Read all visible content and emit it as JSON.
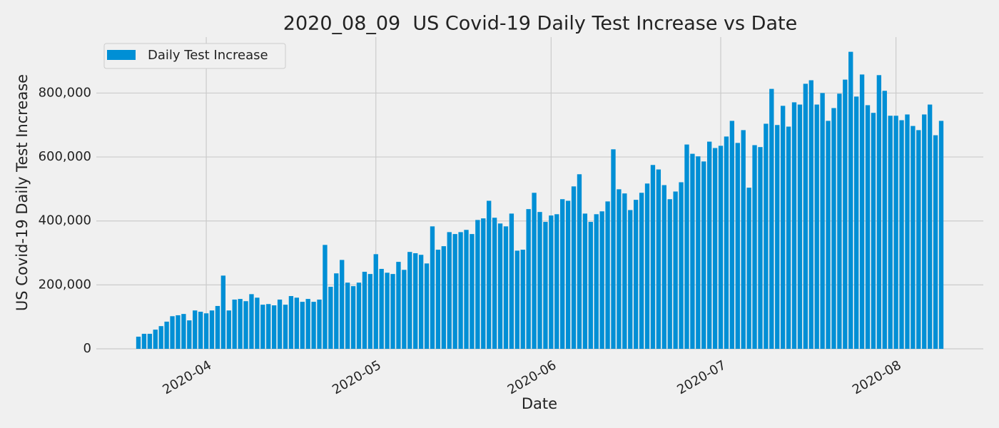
{
  "chart_data": {
    "type": "bar",
    "title": "2020_08_09  US Covid-19 Daily Test Increase vs Date",
    "x_label": "Date",
    "y_label": "US Covid-19 Daily Test Increase",
    "categories": [
      null,
      null,
      null,
      null,
      null,
      null,
      null,
      null,
      null,
      null,
      null,
      null,
      "2020-04",
      null,
      null,
      null,
      null,
      null,
      null,
      null,
      null,
      null,
      null,
      null,
      null,
      null,
      null,
      null,
      null,
      null,
      null,
      null,
      null,
      null,
      null,
      null,
      null,
      null,
      null,
      null,
      null,
      null,
      "2020-05",
      null,
      null,
      null,
      null,
      null,
      null,
      null,
      null,
      null,
      null,
      null,
      null,
      null,
      null,
      null,
      null,
      null,
      null,
      null,
      null,
      null,
      null,
      null,
      null,
      null,
      null,
      null,
      null,
      null,
      null,
      "2020-06",
      null,
      null,
      null,
      null,
      null,
      null,
      null,
      null,
      null,
      null,
      null,
      null,
      null,
      null,
      null,
      null,
      null,
      null,
      null,
      null,
      null,
      null,
      null,
      null,
      null,
      null,
      null,
      null,
      null,
      "2020-07",
      null,
      null,
      null,
      null,
      null,
      null,
      null,
      null,
      null,
      null,
      null,
      null,
      null,
      null,
      null,
      null,
      null,
      null,
      null,
      null,
      null,
      null,
      null,
      null,
      null,
      null,
      null,
      null,
      null,
      null,
      "2020-08",
      null,
      null,
      null,
      null,
      null,
      null,
      null,
      null
    ],
    "series": [
      {
        "name": "Daily Test Increase",
        "color": "#008fd5",
        "values": [
          38000,
          47000,
          47000,
          60000,
          71000,
          85000,
          102000,
          105000,
          109000,
          89000,
          120000,
          116000,
          111000,
          120000,
          134000,
          229000,
          120000,
          154000,
          156000,
          149000,
          171000,
          160000,
          138000,
          140000,
          136000,
          154000,
          138000,
          165000,
          160000,
          147000,
          156000,
          147000,
          154000,
          325000,
          194000,
          236000,
          278000,
          207000,
          196000,
          207000,
          241000,
          234000,
          296000,
          250000,
          238000,
          234000,
          272000,
          247000,
          303000,
          299000,
          294000,
          267000,
          383000,
          310000,
          321000,
          365000,
          359000,
          365000,
          372000,
          359000,
          403000,
          408000,
          463000,
          410000,
          392000,
          383000,
          423000,
          307000,
          310000,
          437000,
          488000,
          428000,
          397000,
          417000,
          421000,
          468000,
          463000,
          508000,
          546000,
          423000,
          397000,
          421000,
          430000,
          461000,
          624000,
          499000,
          486000,
          434000,
          466000,
          488000,
          517000,
          575000,
          561000,
          512000,
          468000,
          492000,
          521000,
          639000,
          610000,
          602000,
          586000,
          648000,
          628000,
          635000,
          664000,
          713000,
          644000,
          684000,
          504000,
          637000,
          631000,
          704000,
          813000,
          700000,
          760000,
          695000,
          771000,
          764000,
          829000,
          840000,
          764000,
          800000,
          713000,
          753000,
          798000,
          842000,
          929000,
          789000,
          858000,
          762000,
          738000,
          856000,
          807000,
          729000,
          729000,
          715000,
          733000,
          697000,
          684000,
          733000,
          764000,
          668000,
          713000
        ]
      }
    ],
    "ylim": [
      0,
      975000
    ],
    "yticks": [
      0,
      {
        "value": 200000,
        "label": "200,000"
      },
      {
        "value": 400000,
        "label": "400,000"
      },
      {
        "value": 600000,
        "label": "600,000"
      },
      {
        "value": 800000,
        "label": "800,000"
      }
    ],
    "grid": true,
    "legend": "upper left"
  }
}
